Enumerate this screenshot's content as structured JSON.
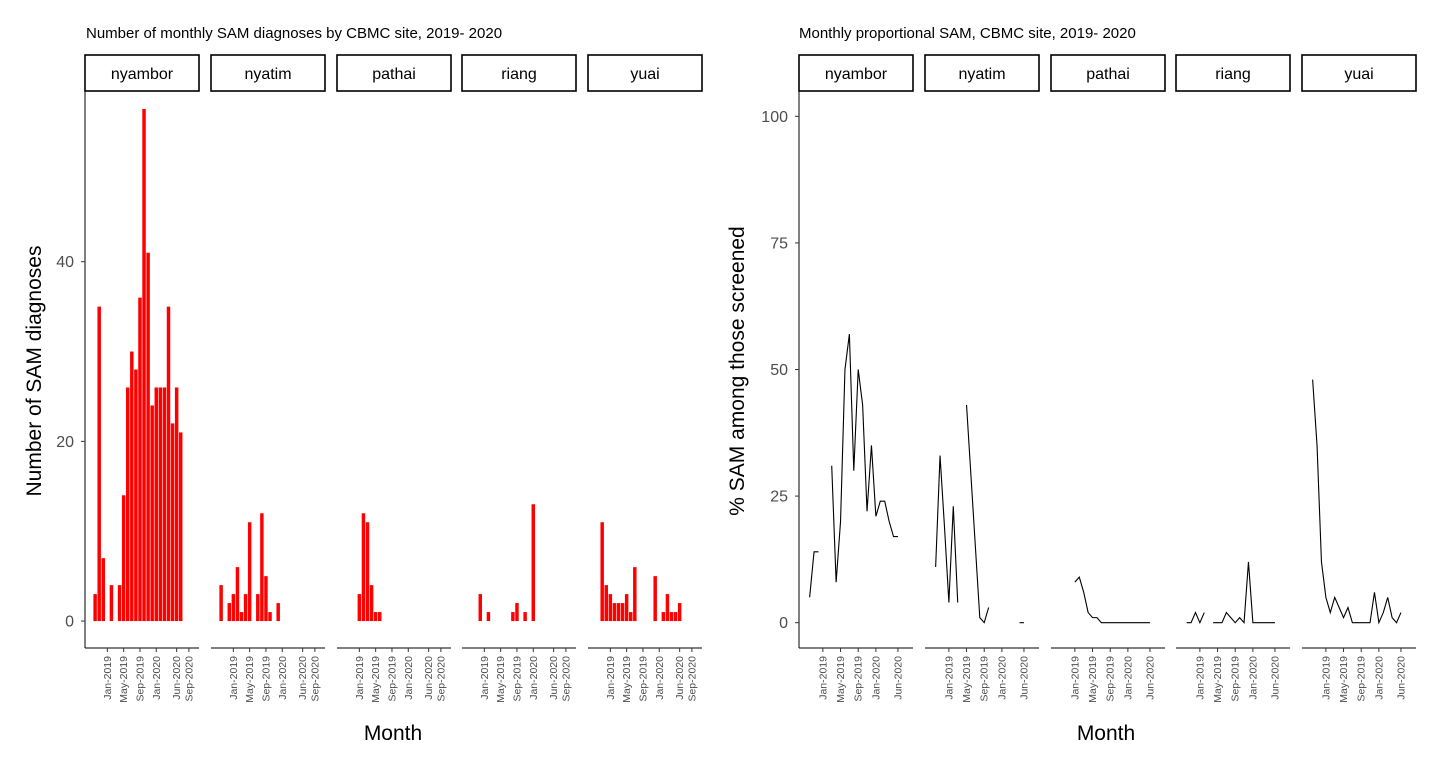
{
  "chart_data": [
    {
      "type": "bar",
      "title": "Number of monthly SAM diagnoses by CBMC site, 2019- 2020",
      "xlabel": "Month",
      "ylabel": "Number of SAM diagnoses",
      "ylim": [
        -3,
        59
      ],
      "yticks": [
        0,
        20,
        40
      ],
      "xlim": [
        "2018-09",
        "2020-10"
      ],
      "xticks": [
        "Jan-2019",
        "May-2019",
        "Sep-2019",
        "Jan-2020",
        "Jun-2020",
        "Sep-2020"
      ],
      "bar_color": "#ff0000",
      "grid": false,
      "facets": [
        {
          "name": "nyambor",
          "points": [
            {
              "month": "2018-10",
              "value": 3
            },
            {
              "month": "2018-11",
              "value": 35
            },
            {
              "month": "2018-12",
              "value": 7
            },
            {
              "month": "2019-02",
              "value": 4
            },
            {
              "month": "2019-04",
              "value": 4
            },
            {
              "month": "2019-05",
              "value": 14
            },
            {
              "month": "2019-06",
              "value": 26
            },
            {
              "month": "2019-07",
              "value": 30
            },
            {
              "month": "2019-08",
              "value": 28
            },
            {
              "month": "2019-09",
              "value": 36
            },
            {
              "month": "2019-10",
              "value": 57
            },
            {
              "month": "2019-11",
              "value": 41
            },
            {
              "month": "2019-12",
              "value": 24
            },
            {
              "month": "2020-01",
              "value": 26
            },
            {
              "month": "2020-02",
              "value": 26
            },
            {
              "month": "2020-03",
              "value": 26
            },
            {
              "month": "2020-04",
              "value": 35
            },
            {
              "month": "2020-05",
              "value": 22
            },
            {
              "month": "2020-06",
              "value": 26
            },
            {
              "month": "2020-07",
              "value": 21
            }
          ]
        },
        {
          "name": "nyatim",
          "points": [
            {
              "month": "2018-10",
              "value": 4
            },
            {
              "month": "2018-12",
              "value": 2
            },
            {
              "month": "2019-01",
              "value": 3
            },
            {
              "month": "2019-02",
              "value": 6
            },
            {
              "month": "2019-03",
              "value": 1
            },
            {
              "month": "2019-04",
              "value": 3
            },
            {
              "month": "2019-05",
              "value": 11
            },
            {
              "month": "2019-07",
              "value": 3
            },
            {
              "month": "2019-08",
              "value": 12
            },
            {
              "month": "2019-09",
              "value": 5
            },
            {
              "month": "2019-10",
              "value": 1
            },
            {
              "month": "2019-12",
              "value": 2
            }
          ]
        },
        {
          "name": "pathai",
          "points": [
            {
              "month": "2019-01",
              "value": 3
            },
            {
              "month": "2019-02",
              "value": 12
            },
            {
              "month": "2019-03",
              "value": 11
            },
            {
              "month": "2019-04",
              "value": 4
            },
            {
              "month": "2019-05",
              "value": 1
            },
            {
              "month": "2019-06",
              "value": 1
            }
          ]
        },
        {
          "name": "riang",
          "points": [
            {
              "month": "2018-12",
              "value": 3
            },
            {
              "month": "2019-02",
              "value": 1
            },
            {
              "month": "2019-08",
              "value": 1
            },
            {
              "month": "2019-09",
              "value": 2
            },
            {
              "month": "2019-11",
              "value": 1
            },
            {
              "month": "2020-01",
              "value": 13
            }
          ]
        },
        {
          "name": "yuai",
          "points": [
            {
              "month": "2018-11",
              "value": 11
            },
            {
              "month": "2018-12",
              "value": 4
            },
            {
              "month": "2019-01",
              "value": 3
            },
            {
              "month": "2019-02",
              "value": 2
            },
            {
              "month": "2019-03",
              "value": 2
            },
            {
              "month": "2019-04",
              "value": 2
            },
            {
              "month": "2019-05",
              "value": 3
            },
            {
              "month": "2019-06",
              "value": 1
            },
            {
              "month": "2019-07",
              "value": 6
            },
            {
              "month": "2019-12",
              "value": 5
            },
            {
              "month": "2020-02",
              "value": 1
            },
            {
              "month": "2020-03",
              "value": 3
            },
            {
              "month": "2020-04",
              "value": 1
            },
            {
              "month": "2020-05",
              "value": 1
            },
            {
              "month": "2020-06",
              "value": 2
            }
          ]
        }
      ]
    },
    {
      "type": "line",
      "title": "Monthly proportional SAM, CBMC site, 2019- 2020",
      "xlabel": "Month",
      "ylabel": "% SAM among those screened",
      "ylim": [
        -5,
        105
      ],
      "yticks": [
        0,
        25,
        50,
        75,
        100
      ],
      "xlim": [
        "2018-09",
        "2020-08"
      ],
      "xticks": [
        "Jan-2019",
        "May-2019",
        "Sep-2019",
        "Jan-2020",
        "Jun-2020"
      ],
      "line_color": "#000000",
      "grid": false,
      "facets": [
        {
          "name": "nyambor",
          "segments": [
            [
              [
                "2018-10",
                5
              ],
              [
                "2018-11",
                14
              ],
              [
                "2018-12",
                14
              ],
              [
                "2019-01",
                null
              ]
            ],
            [
              [
                "2019-03",
                31
              ],
              [
                "2019-04",
                8
              ],
              [
                "2019-05",
                20
              ],
              [
                "2019-06",
                50
              ],
              [
                "2019-07",
                57
              ],
              [
                "2019-08",
                30
              ],
              [
                "2019-09",
                50
              ],
              [
                "2019-10",
                43
              ],
              [
                "2019-11",
                22
              ],
              [
                "2019-12",
                35
              ],
              [
                "2020-01",
                21
              ],
              [
                "2020-02",
                24
              ],
              [
                "2020-03",
                24
              ],
              [
                "2020-04",
                20
              ],
              [
                "2020-05",
                17
              ],
              [
                "2020-06",
                17
              ]
            ]
          ]
        },
        {
          "name": "nyatim",
          "segments": [
            [
              [
                "2018-10",
                11
              ],
              [
                "2018-11",
                33
              ],
              [
                "2018-12",
                19
              ],
              [
                "2019-01",
                4
              ],
              [
                "2019-02",
                23
              ],
              [
                "2019-03",
                4
              ]
            ],
            [
              [
                "2019-05",
                43
              ],
              [
                "2019-06",
                29
              ],
              [
                "2019-07",
                15
              ],
              [
                "2019-08",
                1
              ],
              [
                "2019-09",
                0
              ],
              [
                "2019-10",
                3
              ]
            ],
            [
              [
                "2020-05",
                0
              ],
              [
                "2020-06",
                0
              ]
            ]
          ]
        },
        {
          "name": "pathai",
          "segments": [
            [
              [
                "2019-01",
                8
              ],
              [
                "2019-02",
                9
              ],
              [
                "2019-03",
                6
              ],
              [
                "2019-04",
                2
              ],
              [
                "2019-05",
                1
              ],
              [
                "2019-06",
                1
              ],
              [
                "2019-07",
                0
              ],
              [
                "2019-08",
                0
              ],
              [
                "2019-09",
                0
              ],
              [
                "2019-10",
                0
              ],
              [
                "2019-11",
                0
              ],
              [
                "2019-12",
                0
              ],
              [
                "2020-01",
                0
              ],
              [
                "2020-02",
                0
              ],
              [
                "2020-03",
                0
              ],
              [
                "2020-04",
                0
              ],
              [
                "2020-05",
                0
              ],
              [
                "2020-06",
                0
              ]
            ]
          ]
        },
        {
          "name": "riang",
          "segments": [
            [
              [
                "2018-10",
                0
              ],
              [
                "2018-11",
                0
              ],
              [
                "2018-12",
                2
              ],
              [
                "2019-01",
                0
              ],
              [
                "2019-02",
                2
              ]
            ],
            [
              [
                "2019-04",
                0
              ],
              [
                "2019-05",
                0
              ],
              [
                "2019-06",
                0
              ],
              [
                "2019-07",
                2
              ],
              [
                "2019-08",
                1
              ],
              [
                "2019-09",
                0
              ],
              [
                "2019-10",
                1
              ],
              [
                "2019-11",
                0
              ],
              [
                "2019-12",
                12
              ],
              [
                "2020-01",
                0
              ],
              [
                "2020-02",
                0
              ],
              [
                "2020-03",
                0
              ],
              [
                "2020-04",
                0
              ],
              [
                "2020-05",
                0
              ],
              [
                "2020-06",
                0
              ]
            ]
          ]
        },
        {
          "name": "yuai",
          "segments": [
            [
              [
                "2018-10",
                48
              ],
              [
                "2018-11",
                35
              ],
              [
                "2018-12",
                12
              ],
              [
                "2019-01",
                5
              ],
              [
                "2019-02",
                2
              ],
              [
                "2019-03",
                5
              ],
              [
                "2019-04",
                3
              ],
              [
                "2019-05",
                1
              ],
              [
                "2019-06",
                3
              ],
              [
                "2019-07",
                0
              ],
              [
                "2019-08",
                0
              ],
              [
                "2019-09",
                0
              ],
              [
                "2019-10",
                0
              ],
              [
                "2019-11",
                0
              ],
              [
                "2019-12",
                6
              ],
              [
                "2020-01",
                0
              ],
              [
                "2020-02",
                2
              ],
              [
                "2020-03",
                5
              ],
              [
                "2020-04",
                1
              ],
              [
                "2020-05",
                0
              ],
              [
                "2020-06",
                2
              ]
            ]
          ]
        }
      ]
    }
  ]
}
